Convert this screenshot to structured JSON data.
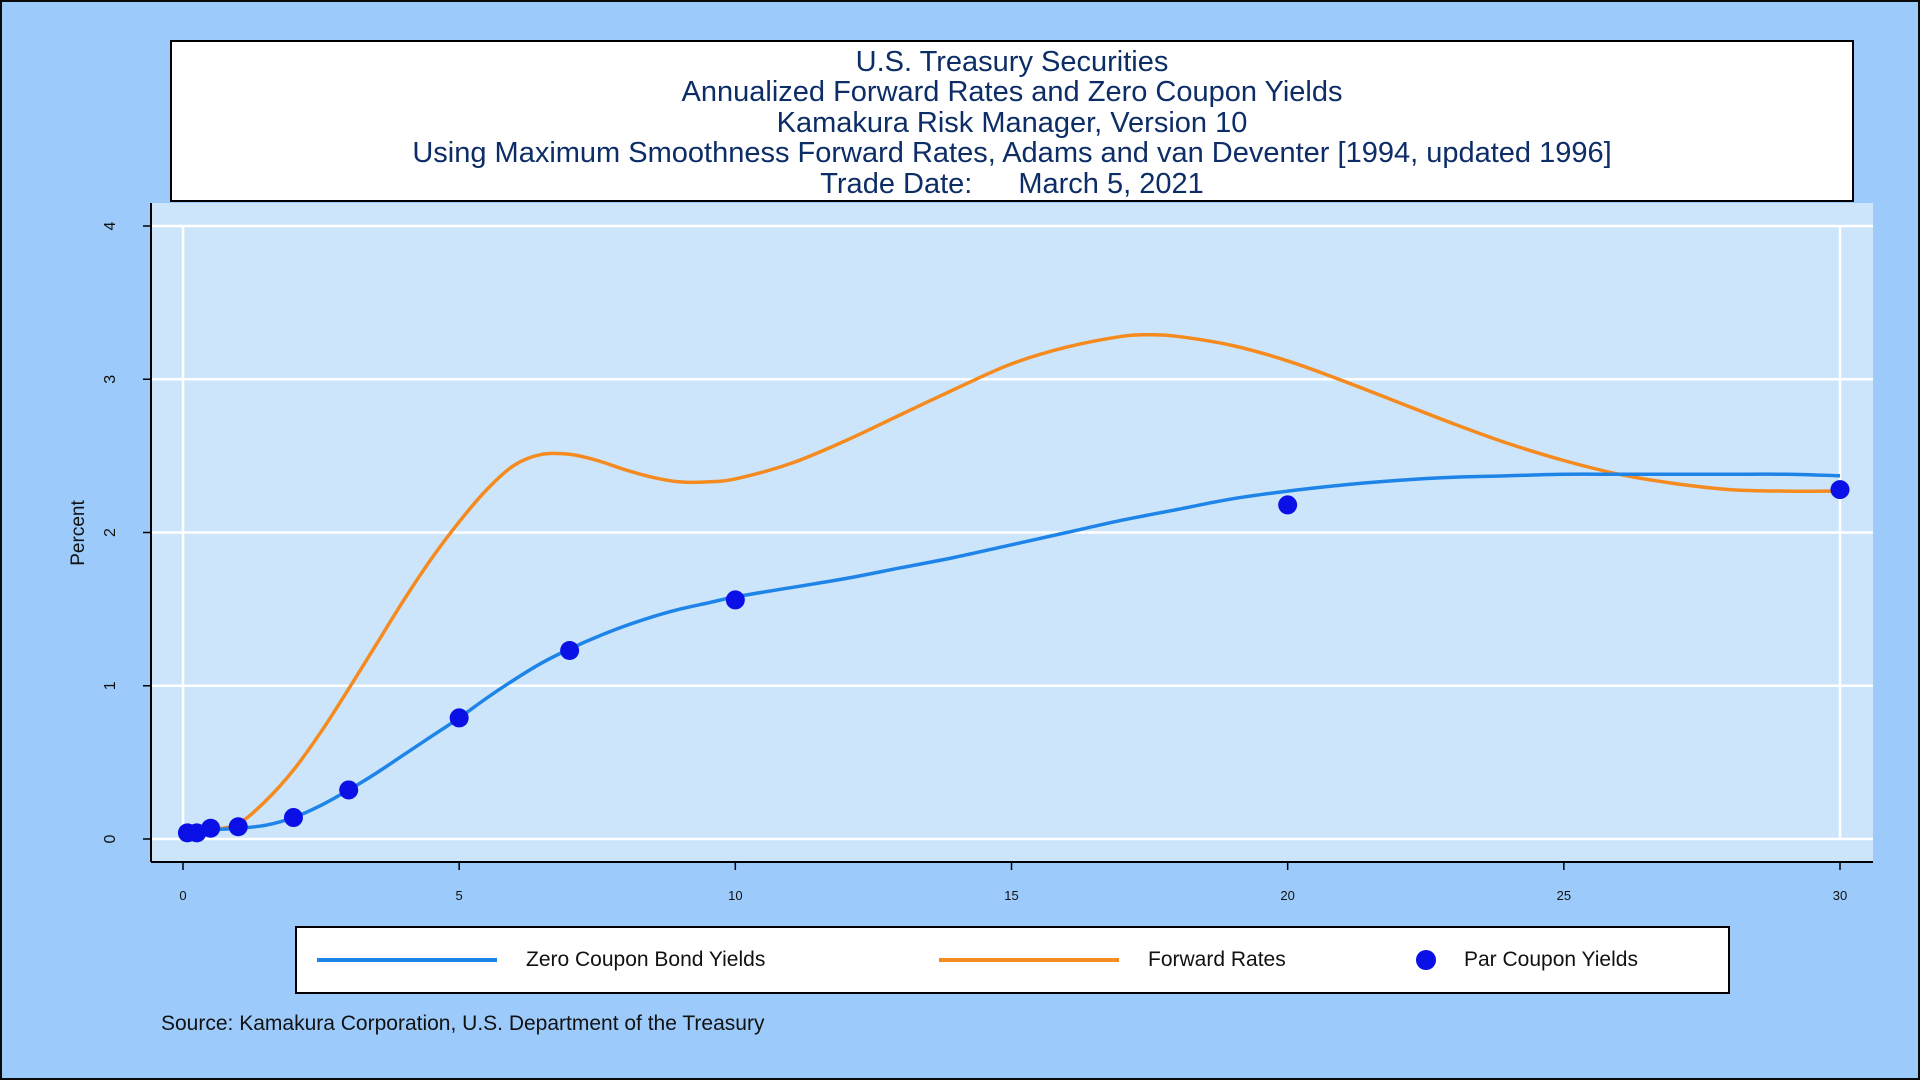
{
  "title": {
    "line1": "U.S. Treasury Securities",
    "line2": "Annualized Forward Rates and Zero Coupon Yields",
    "line3": "Kamakura Risk Manager, Version 10",
    "line4": "Using Maximum Smoothness Forward Rates, Adams and van Deventer [1994, updated 1996]",
    "trade_date_label": "Trade Date:",
    "trade_date_value": "March 5, 2021"
  },
  "legend": {
    "zero": "Zero Coupon Bond Yields",
    "forward": "Forward Rates",
    "par": "Par Coupon Yields"
  },
  "source": "Source: Kamakura Corporation, U.S. Department of the Treasury",
  "colors": {
    "background": "#9ccbfb",
    "plot_area": "#cce5fb",
    "grid": "#ffffff",
    "zero": "#1f84e8",
    "forward": "#f58a1f",
    "par": "#0a10e6",
    "title_text": "#0d2d66"
  },
  "chart_data": {
    "type": "line",
    "xlabel": "",
    "ylabel": "Percent",
    "xlim": [
      0,
      30
    ],
    "ylim": [
      0,
      4
    ],
    "xticks": [
      0,
      5,
      10,
      15,
      20,
      25,
      30
    ],
    "yticks": [
      0,
      1,
      2,
      3,
      4
    ],
    "grid": true,
    "legend_position": "bottom",
    "series": [
      {
        "name": "Zero Coupon Bond Yields",
        "kind": "line",
        "x": [
          0.08,
          0.5,
          1,
          1.5,
          2,
          2.5,
          3,
          3.5,
          4,
          4.5,
          5,
          5.5,
          6,
          6.5,
          7,
          7.5,
          8,
          8.5,
          9,
          9.5,
          10,
          11,
          12,
          13,
          14,
          15,
          16,
          17,
          18,
          19,
          20,
          21,
          22,
          23,
          24,
          25,
          26,
          27,
          28,
          29,
          30
        ],
        "y": [
          0.05,
          0.06,
          0.07,
          0.09,
          0.14,
          0.22,
          0.32,
          0.43,
          0.55,
          0.67,
          0.79,
          0.92,
          1.04,
          1.15,
          1.24,
          1.32,
          1.39,
          1.45,
          1.5,
          1.54,
          1.58,
          1.64,
          1.7,
          1.77,
          1.84,
          1.92,
          2.0,
          2.08,
          2.15,
          2.22,
          2.27,
          2.31,
          2.34,
          2.36,
          2.37,
          2.38,
          2.38,
          2.38,
          2.38,
          2.38,
          2.37
        ]
      },
      {
        "name": "Forward Rates",
        "kind": "line",
        "x": [
          0.08,
          0.5,
          1,
          1.5,
          2,
          2.5,
          3,
          3.5,
          4,
          4.5,
          5,
          5.5,
          6,
          6.5,
          7,
          7.5,
          8,
          8.5,
          9,
          9.5,
          10,
          11,
          12,
          13,
          14,
          15,
          16,
          17,
          17.5,
          18,
          19,
          20,
          21,
          22,
          23,
          24,
          25,
          26,
          27,
          28,
          29,
          30
        ],
        "y": [
          0.05,
          0.06,
          0.1,
          0.25,
          0.45,
          0.7,
          0.98,
          1.27,
          1.56,
          1.83,
          2.07,
          2.28,
          2.44,
          2.51,
          2.51,
          2.47,
          2.41,
          2.36,
          2.33,
          2.33,
          2.35,
          2.45,
          2.6,
          2.77,
          2.94,
          3.1,
          3.21,
          3.28,
          3.29,
          3.28,
          3.22,
          3.12,
          2.99,
          2.85,
          2.71,
          2.58,
          2.47,
          2.38,
          2.32,
          2.28,
          2.27,
          2.27
        ]
      },
      {
        "name": "Par Coupon Yields",
        "kind": "scatter",
        "x": [
          0.08,
          0.25,
          0.5,
          1,
          2,
          3,
          5,
          7,
          10,
          20,
          30
        ],
        "y": [
          0.04,
          0.04,
          0.07,
          0.08,
          0.14,
          0.32,
          0.79,
          1.23,
          1.56,
          2.18,
          2.28
        ]
      }
    ]
  }
}
